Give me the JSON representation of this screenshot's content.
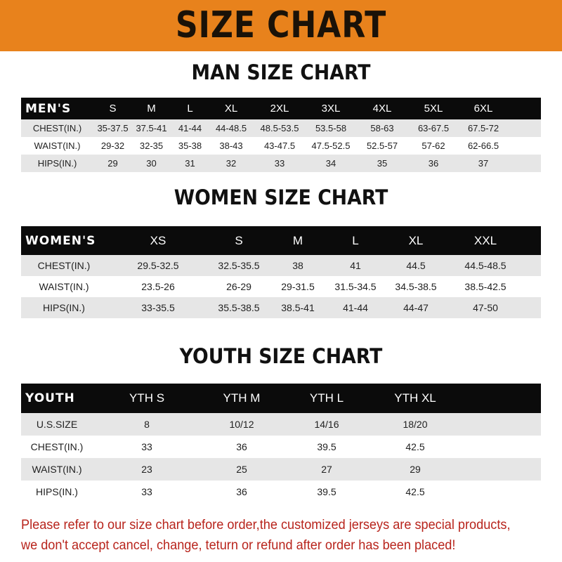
{
  "title": "SIZE CHART",
  "men": {
    "heading": "MAN SIZE CHART",
    "header": [
      "MEN'S",
      "S",
      "M",
      "L",
      "XL",
      "2XL",
      "3XL",
      "4XL",
      "5XL",
      "6XL"
    ],
    "rows": [
      [
        "CHEST(IN.)",
        "35-37.5",
        "37.5-41",
        "41-44",
        "44-48.5",
        "48.5-53.5",
        "53.5-58",
        "58-63",
        "63-67.5",
        "67.5-72"
      ],
      [
        "WAIST(IN.)",
        "29-32",
        "32-35",
        "35-38",
        "38-43",
        "43-47.5",
        "47.5-52.5",
        "52.5-57",
        "57-62",
        "62-66.5"
      ],
      [
        "HIPS(IN.)",
        "29",
        "30",
        "31",
        "32",
        "33",
        "34",
        "35",
        "36",
        "37"
      ]
    ]
  },
  "women": {
    "heading": "WOMEN SIZE CHART",
    "header": [
      "WOMEN'S",
      "XS",
      "S",
      "M",
      "L",
      "XL",
      "XXL"
    ],
    "rows": [
      [
        "CHEST(IN.)",
        "29.5-32.5",
        "32.5-35.5",
        "38",
        "41",
        "44.5",
        "44.5-48.5"
      ],
      [
        "WAIST(IN.)",
        "23.5-26",
        "26-29",
        "29-31.5",
        "31.5-34.5",
        "34.5-38.5",
        "38.5-42.5"
      ],
      [
        "HIPS(IN.)",
        "33-35.5",
        "35.5-38.5",
        "38.5-41",
        "41-44",
        "44-47",
        "47-50"
      ]
    ]
  },
  "youth": {
    "heading": "YOUTH SIZE CHART",
    "header": [
      "YOUTH",
      "YTH S",
      "YTH M",
      "YTH L",
      "YTH XL"
    ],
    "rows": [
      [
        "U.S.SIZE",
        "8",
        "10/12",
        "14/16",
        "18/20"
      ],
      [
        "CHEST(IN.)",
        "33",
        "36",
        "39.5",
        "42.5"
      ],
      [
        "WAIST(IN.)",
        "23",
        "25",
        "27",
        "29"
      ],
      [
        "HIPS(IN.)",
        "33",
        "36",
        "39.5",
        "42.5"
      ]
    ]
  },
  "footer": {
    "line1": "Please refer to our size chart before order,the customized jerseys are special products,",
    "line2": "we don't accept cancel, change, teturn or refund after order has been placed!"
  },
  "colors": {
    "banner": "#e8821c",
    "header_row": "#0b0b0b",
    "notice": "#b8241c"
  }
}
